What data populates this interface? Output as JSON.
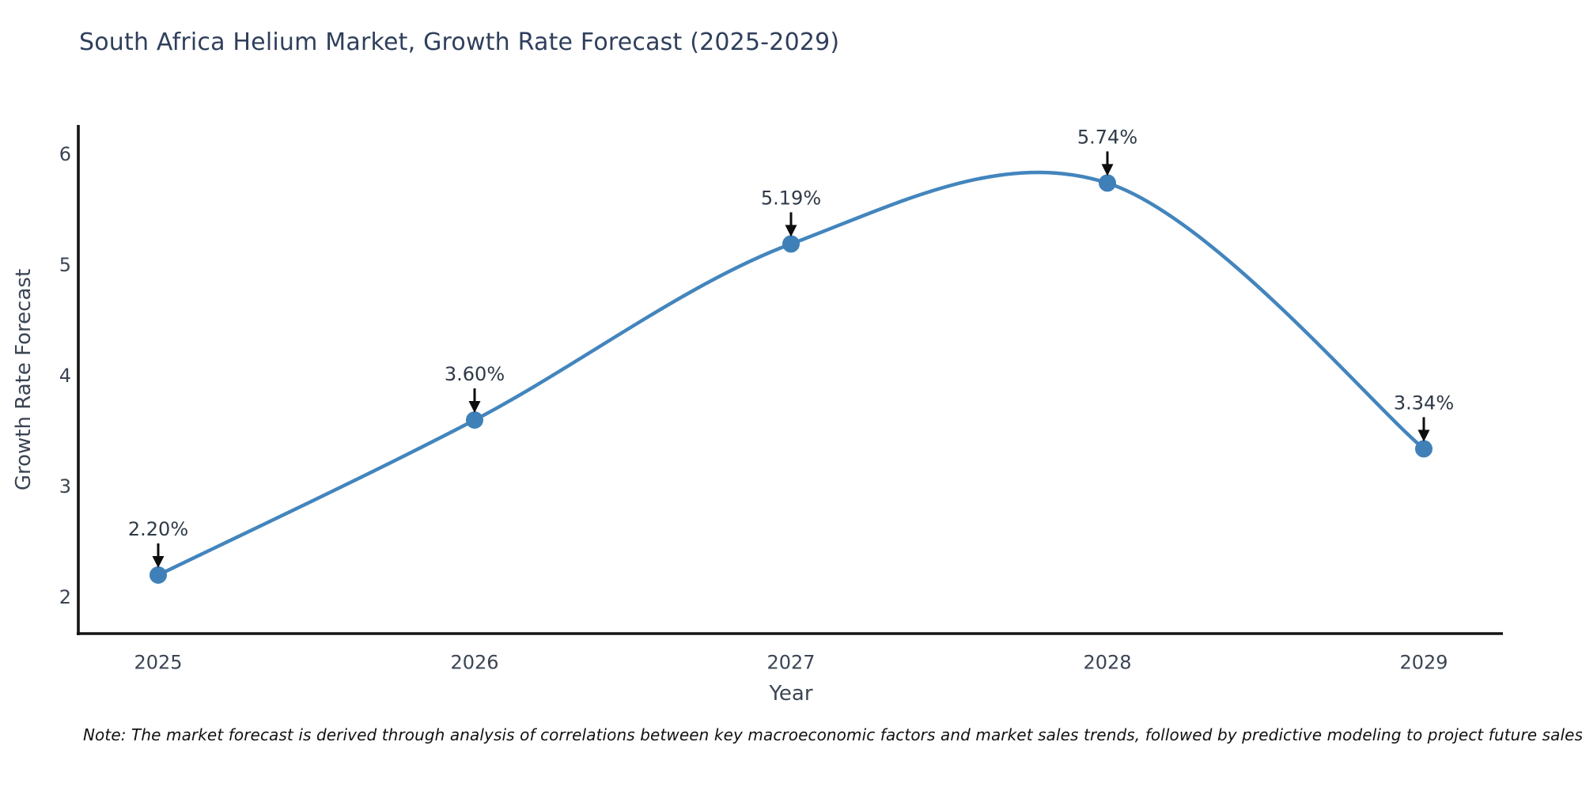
{
  "chart_data": {
    "type": "line",
    "title": "South Africa Helium Market, Growth Rate Forecast (2025-2029)",
    "xlabel": "Year",
    "ylabel": "Growth Rate Forecast",
    "categories": [
      "2025",
      "2026",
      "2027",
      "2028",
      "2029"
    ],
    "values": [
      2.2,
      3.6,
      5.19,
      5.74,
      3.34
    ],
    "point_labels": [
      "2.20%",
      "3.60%",
      "5.19%",
      "5.74%",
      "3.34%"
    ],
    "yticks": [
      2,
      3,
      4,
      5,
      6
    ],
    "ylim": [
      1.67,
      6.6
    ],
    "grid": false,
    "legend": "none",
    "smooth_spline": true,
    "line_color": "#4385bd",
    "marker_color": "#3f80b8",
    "arrow_color": "#0d0d0d",
    "spine_color": "#141414",
    "tick_text_color": "#3b4554",
    "annotation_text_color": "#2f3a47",
    "title_color": "#2f3f5c",
    "note": "Note: The market forecast is derived through analysis of correlations between key macroeconomic factors and market sales trends, followed by predictive modeling to project future sales."
  }
}
